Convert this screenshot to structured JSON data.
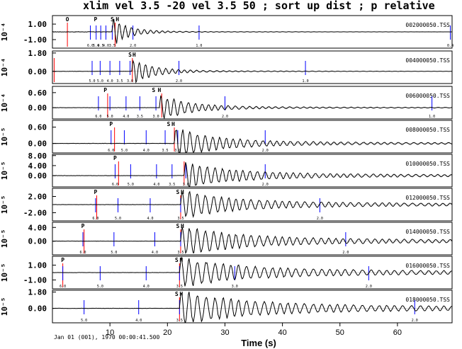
{
  "chart_data": {
    "type": "line",
    "title": "xlim vel 3.5 -20 vel 3.5 50 ; sort up dist ; p relative",
    "xlabel": "Time (s)",
    "xlim": [
      0,
      69.5
    ],
    "x_ticks": [
      "10",
      "20",
      "30",
      "40",
      "50",
      "60"
    ],
    "date_label": "Jan 01 (001), 1970 00:00:41.500",
    "panels": [
      {
        "station": "002000050.TSS",
        "ylabel": "10⁻⁴",
        "yticks": [
          {
            "v": 1.0,
            "label": "1.00"
          },
          {
            "v": -1.0,
            "label": "-1.00"
          }
        ],
        "ylim": [
          -2.1,
          2.1
        ],
        "picks": [
          {
            "label": "O",
            "t": 2.6
          },
          {
            "label": "P",
            "t": 7.5
          },
          {
            "label": "S",
            "t": 10.4
          },
          {
            "label": "H",
            "t": 11.3
          }
        ],
        "red_lines": [
          2.6,
          10.9
        ],
        "vel_lines": [
          {
            "t": 6.6,
            "v": "6.0"
          },
          {
            "t": 7.6,
            "v": "5.0"
          },
          {
            "t": 8.4,
            "v": "4.5"
          },
          {
            "t": 9.3,
            "v": "4.0"
          },
          {
            "t": 10.4,
            "v": "3.5"
          },
          {
            "t": 14.0,
            "v": "2.0"
          },
          {
            "t": 25.5,
            "v": "1.0"
          },
          {
            "t": 69.2,
            "v": "0.4"
          }
        ],
        "onset": 10.4,
        "amp": 1.9,
        "dur": 8,
        "freq": 0.95,
        "coda": 0.05,
        "pre": 0.03
      },
      {
        "station": "004000050.TSS",
        "ylabel": "10⁻⁴",
        "yticks": [
          {
            "v": 1.8,
            "label": "1.80"
          },
          {
            "v": 0.0,
            "label": "0.00"
          }
        ],
        "ylim": [
          -1.2,
          2.0
        ],
        "picks": [
          {
            "label": "S",
            "t": 13.5
          },
          {
            "label": "H",
            "t": 14.2
          }
        ],
        "red_lines": [
          0.3,
          13.9
        ],
        "vel_lines": [
          {
            "t": 6.9,
            "v": "5.0"
          },
          {
            "t": 8.3,
            "v": "5.0"
          },
          {
            "t": 10.0,
            "v": "4.0"
          },
          {
            "t": 11.7,
            "v": "3.5"
          },
          {
            "t": 13.5,
            "v": "3.0"
          },
          {
            "t": 22.0,
            "v": "2.0"
          },
          {
            "t": 44.0,
            "v": "1.0"
          }
        ],
        "onset": 13.8,
        "amp": 1.3,
        "dur": 10,
        "freq": 0.9,
        "coda": 0.08,
        "pre": 0.03
      },
      {
        "station": "006000050.TSS",
        "ylabel": "10⁻⁴",
        "yticks": [
          {
            "v": 0.6,
            "label": "0.60"
          },
          {
            "v": 0.0,
            "label": "0.00"
          }
        ],
        "ylim": [
          -0.45,
          0.85
        ],
        "picks": [
          {
            "label": "P",
            "t": 9.2
          },
          {
            "label": "S",
            "t": 17.6
          },
          {
            "label": "H",
            "t": 18.6
          }
        ],
        "red_lines": [
          9.6,
          19.0
        ],
        "vel_lines": [
          {
            "t": 8.0,
            "v": "6.0"
          },
          {
            "t": 10.0,
            "v": "5.0"
          },
          {
            "t": 12.8,
            "v": "4.0"
          },
          {
            "t": 15.2,
            "v": "3.5"
          },
          {
            "t": 18.0,
            "v": "3.0"
          },
          {
            "t": 30.0,
            "v": "2.0"
          },
          {
            "t": 66.0,
            "v": "1.0"
          }
        ],
        "onset": 18.6,
        "amp": 0.5,
        "dur": 14,
        "freq": 0.85,
        "coda": 0.12,
        "pre": 0.02
      },
      {
        "station": "008000050.TSS",
        "ylabel": "10⁻⁵",
        "yticks": [
          {
            "v": 0.6,
            "label": "0.60"
          },
          {
            "v": 0.0,
            "label": "0.00"
          }
        ],
        "ylim": [
          -0.35,
          0.85
        ],
        "picks": [
          {
            "label": "P",
            "t": 10.2
          },
          {
            "label": "S",
            "t": 20.2
          },
          {
            "label": "H",
            "t": 21.0
          }
        ],
        "red_lines": [
          10.8,
          21.2
        ],
        "vel_lines": [
          {
            "t": 10.2,
            "v": "6.0"
          },
          {
            "t": 12.5,
            "v": "5.0"
          },
          {
            "t": 16.3,
            "v": "4.0"
          },
          {
            "t": 19.6,
            "v": "3.5"
          },
          {
            "t": 21.8,
            "v": "3.0"
          },
          {
            "t": 37.0,
            "v": "2.0"
          }
        ],
        "onset": 21.2,
        "amp": 0.55,
        "dur": 18,
        "freq": 0.8,
        "coda": 0.18,
        "pre": 0.02
      },
      {
        "station": "010000050.TSS",
        "ylabel": "10⁻⁵",
        "yticks": [
          {
            "v": 8.0,
            "label": "8.00"
          },
          {
            "v": 4.0,
            "label": "4.00"
          },
          {
            "v": 0.0,
            "label": "0.00"
          }
        ],
        "ylim": [
          -4.5,
          8.5
        ],
        "picks": [
          {
            "label": "P",
            "t": 10.9
          }
        ],
        "red_lines": [
          11.5,
          22.9
        ],
        "vel_lines": [
          {
            "t": 10.9,
            "v": "6.0"
          },
          {
            "t": 13.6,
            "v": "5.0"
          },
          {
            "t": 18.1,
            "v": "4.0"
          },
          {
            "t": 20.8,
            "v": "3.5"
          },
          {
            "t": 23.2,
            "v": "3.0"
          },
          {
            "t": 37.0,
            "v": "2.0"
          }
        ],
        "onset": 22.9,
        "amp": 5.0,
        "dur": 22,
        "freq": 0.8,
        "coda": 0.22,
        "pre": 0.02
      },
      {
        "station": "012000050.TSS",
        "ylabel": "10⁻⁵",
        "yticks": [
          {
            "v": 2.0,
            "label": "2.00"
          },
          {
            "v": -2.0,
            "label": "-2.00"
          }
        ],
        "ylim": [
          -4.0,
          4.0
        ],
        "picks": [
          {
            "label": "P",
            "t": 7.5
          },
          {
            "label": "S",
            "t": 21.8
          },
          {
            "label": "H",
            "t": 22.6
          }
        ],
        "red_lines": [
          7.7,
          22.3
        ],
        "vel_lines": [
          {
            "t": 7.5,
            "v": "6.0"
          },
          {
            "t": 11.4,
            "v": "5.0"
          },
          {
            "t": 17.0,
            "v": "4.0"
          },
          {
            "t": 22.3,
            "v": "3.5"
          },
          {
            "t": 46.5,
            "v": "2.0"
          }
        ],
        "onset": 22.3,
        "amp": 3.0,
        "dur": 25,
        "freq": 0.75,
        "coda": 0.25,
        "pre": 0.02
      },
      {
        "station": "014000050.TSS",
        "ylabel": "10⁻⁵",
        "yticks": [
          {
            "v": 4.0,
            "label": "4.00"
          },
          {
            "v": 0.0,
            "label": "0.00"
          }
        ],
        "ylim": [
          -4.0,
          5.5
        ],
        "picks": [
          {
            "label": "P",
            "t": 5.3
          },
          {
            "label": "S",
            "t": 21.8
          },
          {
            "label": "H",
            "t": 22.6
          }
        ],
        "red_lines": [
          5.5,
          22.3
        ],
        "vel_lines": [
          {
            "t": 5.3,
            "v": "6.0"
          },
          {
            "t": 10.7,
            "v": "5.0"
          },
          {
            "t": 17.8,
            "v": "4.0"
          },
          {
            "t": 22.3,
            "v": "3.5"
          },
          {
            "t": 51.0,
            "v": "2.0"
          }
        ],
        "onset": 22.3,
        "amp": 3.8,
        "dur": 28,
        "freq": 0.75,
        "coda": 0.25,
        "pre": 0.02
      },
      {
        "station": "016000050.TSS",
        "ylabel": "10⁻⁵",
        "yticks": [
          {
            "v": 1.0,
            "label": "1.00"
          },
          {
            "v": -1.0,
            "label": "-1.00"
          }
        ],
        "ylim": [
          -2.2,
          2.2
        ],
        "picks": [
          {
            "label": "P",
            "t": 1.8
          },
          {
            "label": "S",
            "t": 21.6
          },
          {
            "label": "H",
            "t": 22.4
          }
        ],
        "red_lines": [
          1.8,
          22.1
        ],
        "vel_lines": [
          {
            "t": 1.8,
            "v": "6.0"
          },
          {
            "t": 8.3,
            "v": "5.0"
          },
          {
            "t": 16.3,
            "v": "4.0"
          },
          {
            "t": 22.1,
            "v": "3.5"
          },
          {
            "t": 31.7,
            "v": "3.0"
          },
          {
            "t": 55.0,
            "v": "2.0"
          }
        ],
        "onset": 22.1,
        "amp": 1.7,
        "dur": 30,
        "freq": 0.7,
        "coda": 0.28,
        "pre": 0.02
      },
      {
        "station": "018000050.TSS",
        "ylabel": "10⁻⁵",
        "yticks": [
          {
            "v": 1.8,
            "label": "1.80"
          },
          {
            "v": 0.0,
            "label": "0.00"
          }
        ],
        "ylim": [
          -1.6,
          2.0
        ],
        "picks": [
          {
            "label": "S",
            "t": 21.6
          },
          {
            "label": "H",
            "t": 22.4
          }
        ],
        "red_lines": [
          22.1
        ],
        "vel_lines": [
          {
            "t": 5.5,
            "v": "5.0"
          },
          {
            "t": 15.0,
            "v": "4.0"
          },
          {
            "t": 22.1,
            "v": "3.5"
          },
          {
            "t": 63.0,
            "v": "2.0"
          }
        ],
        "onset": 22.1,
        "amp": 1.6,
        "dur": 30,
        "freq": 0.7,
        "coda": 0.3,
        "pre": 0.02
      }
    ]
  }
}
